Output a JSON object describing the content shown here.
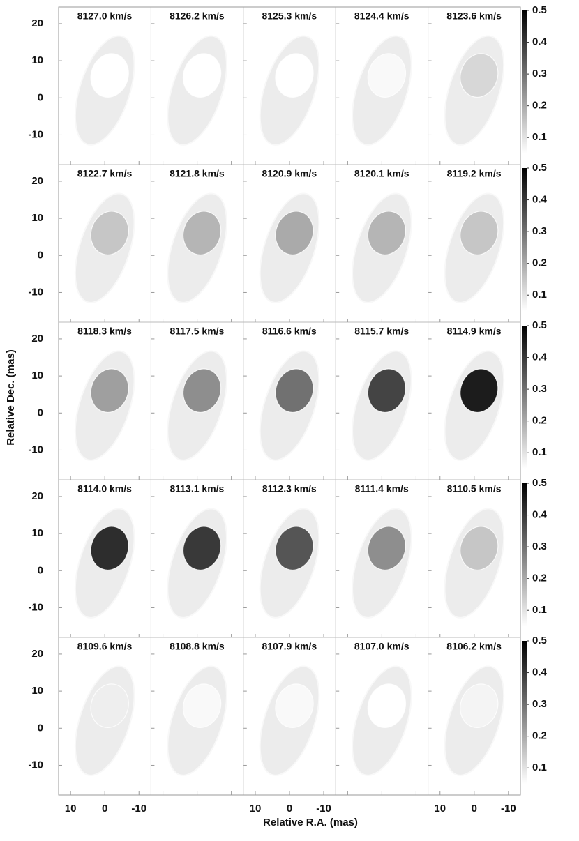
{
  "chart_data": {
    "type": "channelmap",
    "channels": [
      "8127.0 km/s",
      "8126.2 km/s",
      "8125.3 km/s",
      "8124.4 km/s",
      "8123.6 km/s",
      "8122.7 km/s",
      "8121.8 km/s",
      "8120.9 km/s",
      "8120.1 km/s",
      "8119.2 km/s",
      "8118.3 km/s",
      "8117.5 km/s",
      "8116.6 km/s",
      "8115.7 km/s",
      "8114.9 km/s",
      "8114.0 km/s",
      "8113.1 km/s",
      "8112.3 km/s",
      "8111.4 km/s",
      "8110.5 km/s",
      "8109.6 km/s",
      "8108.8 km/s",
      "8107.9 km/s",
      "8107.0 km/s",
      "8106.2 km/s"
    ],
    "peak_intensity": [
      0.05,
      0.05,
      0.05,
      0.06,
      0.12,
      0.15,
      0.18,
      0.2,
      0.18,
      0.15,
      0.22,
      0.25,
      0.3,
      0.38,
      0.45,
      0.42,
      0.4,
      0.35,
      0.25,
      0.15,
      0.08,
      0.06,
      0.06,
      0.05,
      0.07
    ],
    "ylabel": "Relative Dec. (mas)",
    "xlabel": "Relative R.A. (mas)",
    "xlim": [
      13.5,
      -13.5
    ],
    "xticks": [
      10,
      0,
      -10
    ],
    "ylim": [
      -18,
      24.5
    ],
    "yticks": [
      20,
      10,
      0,
      -10
    ],
    "clim": [
      0.05,
      0.5
    ],
    "cticks": [
      0.5,
      0.4,
      0.3,
      0.2,
      0.1
    ]
  }
}
